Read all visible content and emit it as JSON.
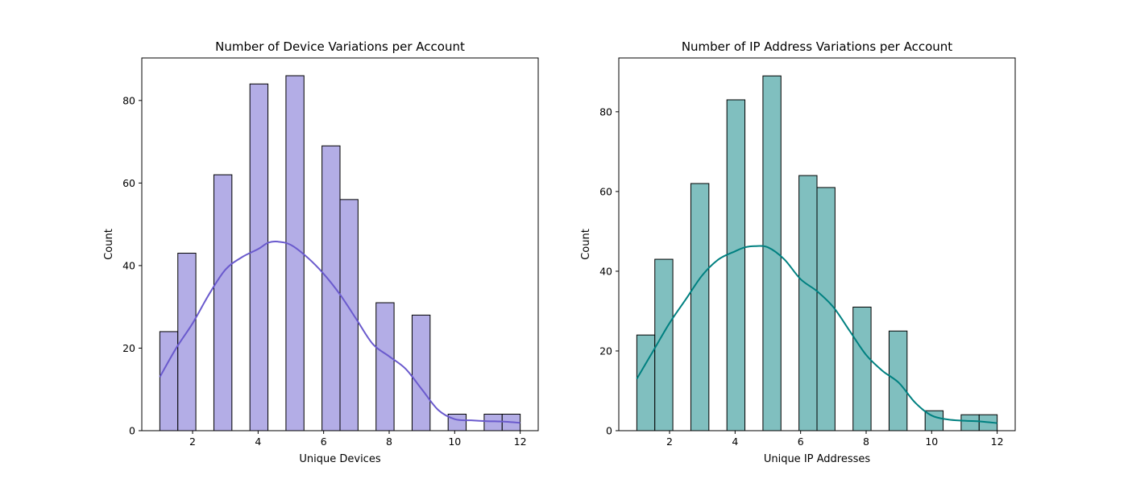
{
  "chart_data": [
    {
      "type": "bar",
      "title": "Number of Device Variations per Account",
      "xlabel": "Unique Devices",
      "ylabel": "Count",
      "xlim": [
        0.45,
        12.55
      ],
      "ylim": [
        0,
        90.3
      ],
      "xticks": [
        2,
        4,
        6,
        8,
        10,
        12
      ],
      "yticks": [
        0,
        20,
        40,
        60,
        80
      ],
      "bar_color": "#B3ADE6",
      "edge_color": "#000000",
      "kde_color": "#6A5ACD",
      "bins": [
        {
          "x0": 1.0,
          "x1": 1.55,
          "count": 24
        },
        {
          "x0": 1.55,
          "x1": 2.1,
          "count": 43
        },
        {
          "x0": 2.65,
          "x1": 3.2,
          "count": 62
        },
        {
          "x0": 3.75,
          "x1": 4.3,
          "count": 84
        },
        {
          "x0": 4.85,
          "x1": 5.4,
          "count": 86
        },
        {
          "x0": 5.95,
          "x1": 6.5,
          "count": 69
        },
        {
          "x0": 6.5,
          "x1": 7.05,
          "count": 56
        },
        {
          "x0": 7.6,
          "x1": 8.15,
          "count": 31
        },
        {
          "x0": 8.7,
          "x1": 9.25,
          "count": 28
        },
        {
          "x0": 9.8,
          "x1": 10.35,
          "count": 4
        },
        {
          "x0": 10.9,
          "x1": 11.45,
          "count": 4
        },
        {
          "x0": 11.45,
          "x1": 12.0,
          "count": 4
        }
      ],
      "kde": {
        "x": [
          1.0,
          1.5,
          2.0,
          2.5,
          3.0,
          3.5,
          4.0,
          4.3,
          4.6,
          5.0,
          5.5,
          6.0,
          6.5,
          7.0,
          7.5,
          8.0,
          8.5,
          9.0,
          9.5,
          10.0,
          10.5,
          11.0,
          11.5,
          12.0
        ],
        "y": [
          13,
          20,
          26,
          33,
          39,
          42,
          44,
          45.5,
          45.8,
          45,
          42,
          38,
          33,
          27,
          21,
          18,
          15,
          10,
          5,
          2.8,
          2.5,
          2.3,
          2.2,
          1.9
        ]
      }
    },
    {
      "type": "bar",
      "title": "Number of IP Address Variations per Account",
      "xlabel": "Unique IP Addresses",
      "ylabel": "Count",
      "xlim": [
        0.45,
        12.55
      ],
      "ylim": [
        0,
        93.5
      ],
      "xticks": [
        2,
        4,
        6,
        8,
        10,
        12
      ],
      "yticks": [
        0,
        20,
        40,
        60,
        80
      ],
      "bar_color": "#80BFBF",
      "edge_color": "#000000",
      "kde_color": "#008080",
      "bins": [
        {
          "x0": 1.0,
          "x1": 1.55,
          "count": 24
        },
        {
          "x0": 1.55,
          "x1": 2.1,
          "count": 43
        },
        {
          "x0": 2.65,
          "x1": 3.2,
          "count": 62
        },
        {
          "x0": 3.75,
          "x1": 4.3,
          "count": 83
        },
        {
          "x0": 4.85,
          "x1": 5.4,
          "count": 89
        },
        {
          "x0": 5.95,
          "x1": 6.5,
          "count": 64
        },
        {
          "x0": 6.5,
          "x1": 7.05,
          "count": 61
        },
        {
          "x0": 7.6,
          "x1": 8.15,
          "count": 31
        },
        {
          "x0": 8.7,
          "x1": 9.25,
          "count": 25
        },
        {
          "x0": 9.8,
          "x1": 10.35,
          "count": 5
        },
        {
          "x0": 10.9,
          "x1": 11.45,
          "count": 4
        },
        {
          "x0": 11.45,
          "x1": 12.0,
          "count": 4
        }
      ],
      "kde": {
        "x": [
          1.0,
          1.5,
          2.0,
          2.5,
          3.0,
          3.5,
          4.0,
          4.3,
          4.6,
          5.0,
          5.5,
          6.0,
          6.5,
          7.0,
          7.5,
          8.0,
          8.5,
          9.0,
          9.5,
          10.0,
          10.5,
          11.0,
          11.5,
          12.0
        ],
        "y": [
          13,
          20,
          27,
          33,
          39,
          43,
          45,
          46,
          46.3,
          46,
          43,
          38,
          35,
          31,
          25,
          19,
          15,
          12,
          7,
          3.8,
          2.8,
          2.5,
          2.3,
          1.9
        ]
      }
    }
  ]
}
